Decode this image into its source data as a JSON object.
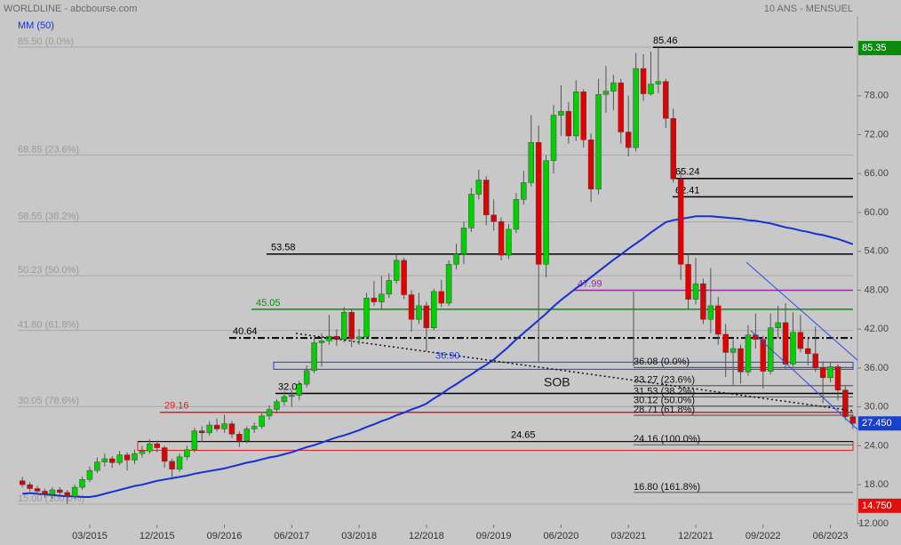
{
  "chart_data": {
    "type": "candlestick",
    "title": "WORLDLINE - abcbourse.com",
    "subtitle": "10 ANS - MENSUEL",
    "annotation": "SOB",
    "up_color": "#00d000",
    "down_color": "#e00000",
    "categories": [
      null,
      null,
      null,
      null,
      null,
      null,
      null,
      null,
      null,
      "03/2015",
      null,
      null,
      null,
      null,
      null,
      null,
      null,
      null,
      "12/2015",
      null,
      null,
      null,
      null,
      null,
      null,
      null,
      null,
      "09/2016",
      null,
      null,
      null,
      null,
      null,
      null,
      null,
      null,
      "06/2017",
      null,
      null,
      null,
      null,
      null,
      null,
      null,
      null,
      "03/2018",
      null,
      null,
      null,
      null,
      null,
      null,
      null,
      null,
      "12/2018",
      null,
      null,
      null,
      null,
      null,
      null,
      null,
      null,
      "09/2019",
      null,
      null,
      null,
      null,
      null,
      null,
      null,
      null,
      "06/2020",
      null,
      null,
      null,
      null,
      null,
      null,
      null,
      null,
      "03/2021",
      null,
      null,
      null,
      null,
      null,
      null,
      null,
      null,
      "12/2021",
      null,
      null,
      null,
      null,
      null,
      null,
      null,
      null,
      "09/2022",
      null,
      null,
      null,
      null,
      null,
      null,
      null,
      null,
      "06/2023",
      null,
      null,
      null
    ],
    "candles": [
      [
        18.6,
        19.2,
        17.6,
        18.0
      ],
      [
        18.0,
        18.4,
        17.0,
        17.4
      ],
      [
        17.4,
        17.8,
        16.6,
        17.0
      ],
      [
        17.0,
        17.4,
        16.0,
        16.5
      ],
      [
        16.5,
        17.6,
        15.8,
        17.2
      ],
      [
        17.2,
        17.6,
        16.4,
        16.8
      ],
      [
        16.8,
        17.2,
        15.0,
        16.2
      ],
      [
        16.2,
        18.0,
        15.8,
        17.6
      ],
      [
        17.6,
        19.2,
        17.2,
        18.8
      ],
      [
        18.8,
        20.8,
        18.4,
        20.2
      ],
      [
        20.2,
        22.2,
        19.8,
        21.5
      ],
      [
        21.5,
        22.8,
        20.8,
        22.0
      ],
      [
        22.0,
        22.4,
        20.6,
        21.4
      ],
      [
        21.4,
        23.2,
        21.0,
        22.6
      ],
      [
        22.6,
        23.0,
        20.2,
        21.8
      ],
      [
        21.8,
        23.4,
        21.2,
        22.8
      ],
      [
        22.8,
        24.0,
        22.2,
        23.2
      ],
      [
        23.2,
        25.0,
        22.8,
        24.3
      ],
      [
        24.3,
        24.8,
        23.0,
        23.7
      ],
      [
        23.7,
        24.0,
        20.6,
        21.6
      ],
      [
        21.6,
        22.0,
        18.8,
        20.4
      ],
      [
        20.4,
        22.8,
        20.0,
        22.3
      ],
      [
        22.3,
        24.0,
        21.8,
        23.4
      ],
      [
        23.4,
        26.8,
        23.0,
        26.3
      ],
      [
        26.3,
        27.0,
        24.6,
        26.0
      ],
      [
        26.0,
        27.8,
        25.6,
        27.2
      ],
      [
        27.2,
        28.2,
        26.2,
        26.6
      ],
      [
        26.6,
        28.8,
        26.0,
        27.4
      ],
      [
        27.4,
        27.8,
        25.2,
        25.8
      ],
      [
        25.8,
        26.2,
        23.8,
        24.8
      ],
      [
        24.8,
        27.0,
        24.4,
        26.6
      ],
      [
        26.6,
        27.6,
        26.0,
        27.0
      ],
      [
        27.0,
        29.0,
        26.6,
        28.6
      ],
      [
        28.6,
        30.2,
        28.0,
        29.6
      ],
      [
        29.6,
        31.2,
        29.0,
        30.8
      ],
      [
        30.8,
        32.4,
        30.2,
        31.6
      ],
      [
        31.6,
        32.6,
        30.0,
        31.8
      ],
      [
        31.8,
        34.0,
        31.0,
        33.5
      ],
      [
        33.5,
        36.4,
        33.0,
        35.6
      ],
      [
        35.6,
        40.6,
        35.2,
        39.9
      ],
      [
        39.9,
        41.4,
        36.2,
        40.2
      ],
      [
        40.2,
        44.2,
        39.6,
        40.9
      ],
      [
        40.9,
        42.0,
        39.4,
        40.4
      ],
      [
        40.4,
        45.4,
        40.0,
        44.6
      ],
      [
        44.6,
        45.0,
        39.2,
        40.5
      ],
      [
        40.5,
        42.0,
        39.6,
        40.8
      ],
      [
        40.8,
        47.6,
        40.4,
        46.8
      ],
      [
        46.8,
        49.4,
        45.6,
        46.2
      ],
      [
        46.2,
        50.2,
        45.0,
        47.4
      ],
      [
        47.4,
        50.6,
        46.8,
        49.5
      ],
      [
        49.5,
        53.4,
        49.0,
        52.6
      ],
      [
        52.6,
        53.0,
        46.6,
        47.3
      ],
      [
        47.3,
        48.0,
        41.6,
        43.5
      ],
      [
        43.5,
        47.6,
        42.8,
        45.6
      ],
      [
        45.6,
        46.2,
        38.6,
        42.2
      ],
      [
        42.2,
        48.2,
        41.8,
        47.8
      ],
      [
        47.8,
        49.6,
        45.4,
        46.0
      ],
      [
        46.0,
        52.6,
        45.6,
        52.0
      ],
      [
        52.0,
        55.2,
        51.2,
        53.6
      ],
      [
        53.6,
        58.6,
        52.0,
        57.6
      ],
      [
        57.6,
        63.8,
        57.0,
        62.8
      ],
      [
        62.8,
        66.6,
        62.0,
        65.0
      ],
      [
        65.0,
        65.6,
        58.0,
        59.6
      ],
      [
        59.6,
        62.0,
        57.2,
        58.6
      ],
      [
        58.6,
        59.2,
        52.6,
        53.4
      ],
      [
        53.4,
        58.2,
        52.8,
        57.4
      ],
      [
        57.4,
        63.0,
        56.8,
        62.0
      ],
      [
        62.0,
        66.4,
        61.2,
        64.6
      ],
      [
        64.6,
        75.0,
        64.0,
        70.8
      ],
      [
        70.8,
        73.4,
        37.0,
        52.0
      ],
      [
        52.0,
        68.8,
        50.0,
        68.0
      ],
      [
        68.0,
        76.6,
        66.0,
        75.0
      ],
      [
        75.0,
        79.6,
        71.8,
        75.6
      ],
      [
        75.6,
        77.0,
        70.6,
        71.8
      ],
      [
        71.8,
        80.4,
        71.0,
        78.6
      ],
      [
        78.6,
        79.0,
        70.0,
        71.2
      ],
      [
        71.2,
        72.2,
        61.6,
        63.6
      ],
      [
        63.6,
        80.6,
        62.8,
        78.2
      ],
      [
        78.2,
        82.6,
        75.4,
        78.7
      ],
      [
        78.7,
        81.2,
        75.8,
        80.0
      ],
      [
        80.0,
        80.6,
        70.6,
        72.4
      ],
      [
        72.4,
        78.0,
        68.6,
        70.0
      ],
      [
        70.0,
        84.6,
        69.4,
        82.2
      ],
      [
        82.2,
        84.4,
        77.2,
        78.3
      ],
      [
        78.3,
        84.8,
        78.0,
        79.8
      ],
      [
        79.8,
        85.46,
        78.4,
        80.2
      ],
      [
        80.2,
        80.6,
        73.0,
        74.5
      ],
      [
        74.5,
        76.0,
        64.6,
        65.2
      ],
      [
        65.2,
        66.4,
        49.6,
        52.0
      ],
      [
        52.0,
        53.4,
        45.0,
        46.6
      ],
      [
        46.6,
        53.0,
        45.8,
        49.0
      ],
      [
        49.0,
        49.8,
        42.8,
        43.5
      ],
      [
        43.5,
        51.4,
        41.4,
        45.6
      ],
      [
        45.6,
        47.0,
        39.6,
        41.2
      ],
      [
        41.2,
        42.8,
        34.6,
        38.4
      ],
      [
        38.4,
        40.4,
        33.4,
        39.0
      ],
      [
        39.0,
        39.6,
        33.6,
        35.4
      ],
      [
        35.4,
        42.6,
        34.8,
        41.1
      ],
      [
        41.1,
        44.4,
        39.0,
        40.4
      ],
      [
        40.4,
        41.0,
        32.8,
        35.5
      ],
      [
        35.5,
        44.4,
        35.0,
        42.2
      ],
      [
        42.2,
        45.6,
        40.6,
        43.0
      ],
      [
        43.0,
        46.0,
        35.8,
        36.6
      ],
      [
        36.6,
        44.6,
        36.2,
        41.5
      ],
      [
        41.5,
        44.2,
        38.4,
        39.0
      ],
      [
        39.0,
        40.6,
        36.4,
        38.2
      ],
      [
        38.2,
        42.4,
        35.4,
        36.0
      ],
      [
        36.0,
        37.0,
        30.6,
        34.5
      ],
      [
        34.5,
        36.8,
        33.8,
        36.2
      ],
      [
        36.2,
        36.6,
        31.0,
        32.6
      ],
      [
        32.6,
        33.2,
        28.0,
        28.5
      ],
      [
        28.5,
        28.9,
        26.6,
        27.45
      ]
    ],
    "ma": {
      "name": "MM (50)",
      "color": "#1530d8",
      "values": [
        16.6,
        16.7,
        16.6,
        16.5,
        16.4,
        16.3,
        16.2,
        16.2,
        16.1,
        16.1,
        16.3,
        16.6,
        16.9,
        17.2,
        17.5,
        17.8,
        18.0,
        18.3,
        18.6,
        18.8,
        19.0,
        19.2,
        19.4,
        19.7,
        19.9,
        20.1,
        20.3,
        20.5,
        20.8,
        21.1,
        21.4,
        21.6,
        21.9,
        22.2,
        22.4,
        22.7,
        23.0,
        23.4,
        23.8,
        24.1,
        24.5,
        24.9,
        25.3,
        25.6,
        26.0,
        26.4,
        26.9,
        27.3,
        27.8,
        28.2,
        28.7,
        29.1,
        29.6,
        30.0,
        30.5,
        31.3,
        32.0,
        32.8,
        33.5,
        34.3,
        35.0,
        35.8,
        36.5,
        37.3,
        38.3,
        39.3,
        40.4,
        41.4,
        42.4,
        43.4,
        44.4,
        45.5,
        46.5,
        47.4,
        48.3,
        49.1,
        50.0,
        50.9,
        51.8,
        52.7,
        53.5,
        54.4,
        55.2,
        56.0,
        56.9,
        57.7,
        58.5,
        58.8,
        59.0,
        59.2,
        59.4,
        59.4,
        59.4,
        59.3,
        59.2,
        59.1,
        59.0,
        58.8,
        58.7,
        58.5,
        58.3,
        58.0,
        57.7,
        57.5,
        57.2,
        57.0,
        56.7,
        56.5,
        56.2,
        55.9,
        55.5,
        55.1
      ]
    },
    "ylim": [
      11.85,
      90.3
    ],
    "yticks": [
      {
        "value": 78,
        "label": "78.00"
      },
      {
        "value": 72,
        "label": "72.00"
      },
      {
        "value": 66,
        "label": "66.00"
      },
      {
        "value": 60,
        "label": "60.00"
      },
      {
        "value": 54,
        "label": "54.00"
      },
      {
        "value": 48,
        "label": "48.00"
      },
      {
        "value": 42,
        "label": "42.00"
      },
      {
        "value": 36,
        "label": "36.00"
      },
      {
        "value": 30,
        "label": "30.00"
      },
      {
        "value": 24,
        "label": "24.00"
      },
      {
        "value": 18,
        "label": "18.00"
      },
      {
        "value": 12,
        "label": "12.000"
      }
    ],
    "levels": [
      {
        "value": 85.46,
        "label": "85.46",
        "color": "#000000",
        "style": "solid"
      },
      {
        "value": 65.24,
        "label": "65.24",
        "color": "#000000",
        "style": "solid"
      },
      {
        "value": 62.41,
        "label": "62.41",
        "color": "#000000",
        "style": "solid"
      },
      {
        "value": 53.58,
        "label": "53.58",
        "color": "#000000",
        "style": "solid"
      },
      {
        "value": 47.99,
        "label": "47.99",
        "color": "#9a2a9a",
        "style": "solid"
      },
      {
        "value": 45.05,
        "label": "45.05",
        "color": "#108a10",
        "style": "solid"
      },
      {
        "value": 40.64,
        "label": "40.64",
        "color": "#000000",
        "style": "dashdot"
      },
      {
        "value": 36.9,
        "label": "36.90",
        "color": "#2040e0",
        "style": "zone",
        "zone": [
          35.8,
          36.9
        ]
      },
      {
        "value": 32.08,
        "label": "32.08",
        "color": "#000000",
        "style": "solid"
      },
      {
        "value": 29.16,
        "label": "29.16",
        "color": "#e02020",
        "style": "solid"
      },
      {
        "value": 24.65,
        "label": "24.65",
        "color": "#000000",
        "style": "zone",
        "zone_color": "#e02020",
        "zone": [
          23.3,
          24.65
        ]
      }
    ],
    "fib_left": [
      {
        "value": 85.5,
        "label": "85.50 (0.0%)"
      },
      {
        "value": 68.85,
        "label": "68.85 (23.6%)"
      },
      {
        "value": 58.55,
        "label": "58.55 (38.2%)"
      },
      {
        "value": 50.23,
        "label": "50.23 (50.0%)"
      },
      {
        "value": 41.8,
        "label": "41.80 (61.8%)"
      },
      {
        "value": 30.05,
        "label": "30.05 (78.6%)"
      },
      {
        "value": 15.0,
        "label": "15.00 (100.0%)"
      }
    ],
    "fib_right": [
      {
        "value": 36.08,
        "label": "36.08 (0.0%)"
      },
      {
        "value": 33.27,
        "label": "33.27 (23.6%)"
      },
      {
        "value": 31.53,
        "label": "31.53 (38.2%)"
      },
      {
        "value": 30.12,
        "label": "30.12 (50.0%)"
      },
      {
        "value": 28.71,
        "label": "28.71 (61.8%)"
      },
      {
        "value": 24.16,
        "label": "24.16 (100.0%)"
      },
      {
        "value": 16.8,
        "label": "16.80 (161.8%)"
      }
    ],
    "price_tags": [
      {
        "value": 85.35,
        "label": "85.35",
        "color": "#0a8a0a"
      },
      {
        "value": 27.45,
        "label": "27.450",
        "color": "#1a40d0"
      },
      {
        "value": 14.75,
        "label": "14.750",
        "color": "#e01010"
      }
    ]
  }
}
